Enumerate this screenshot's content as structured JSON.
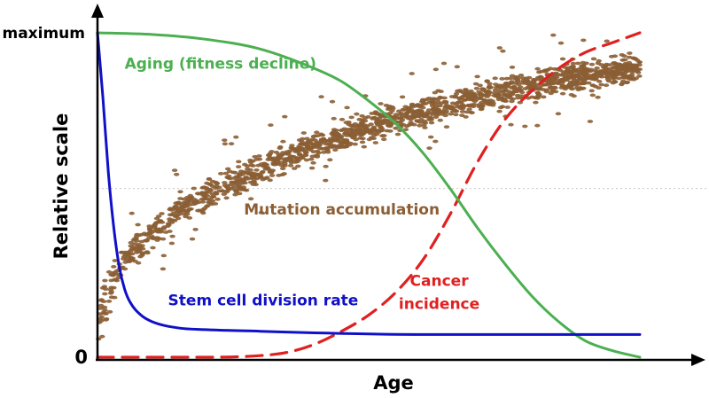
{
  "chart_data": {
    "type": "line",
    "title": "",
    "xlabel": "Age",
    "ylabel": "Relative scale",
    "xlim": [
      0,
      100
    ],
    "ylim": [
      0,
      100
    ],
    "y_ticks": [
      {
        "value": 100,
        "label": "maximum"
      },
      {
        "value": 0,
        "label": "0"
      }
    ],
    "reference_line": {
      "y": 52,
      "style": "dotted",
      "color": "#cccccc"
    },
    "legend": "none",
    "series": [
      {
        "name": "Aging (fitness decline)",
        "style": "solid",
        "color": "#4caf50",
        "label_value": {
          "x": 5,
          "y": 89
        },
        "x": [
          0,
          10,
          20,
          30,
          40,
          45,
          50,
          55,
          60,
          65,
          70,
          75,
          80,
          85,
          90,
          95,
          100
        ],
        "y": [
          100,
          99.5,
          98,
          95,
          89,
          85,
          79,
          72,
          63,
          52,
          40,
          29,
          19,
          11,
          5,
          2,
          0
        ]
      },
      {
        "name": "Stem cell division rate",
        "style": "solid",
        "color": "#1010c8",
        "label_value": {
          "x": 13,
          "y": 16
        },
        "x": [
          0,
          1,
          2,
          3,
          4,
          5,
          6,
          8,
          10,
          15,
          20,
          30,
          40,
          60,
          80,
          100
        ],
        "y": [
          100,
          80,
          57,
          40,
          28,
          21,
          17,
          13,
          11,
          9,
          8.5,
          8,
          7.5,
          7,
          7,
          7
        ]
      },
      {
        "name": "Cancer incidence",
        "style": "dashed",
        "color": "#e02020",
        "label_value": {
          "x": 63,
          "y": 22
        },
        "label_lines": [
          "Cancer",
          "incidence"
        ],
        "x": [
          0,
          20,
          30,
          35,
          40,
          45,
          50,
          55,
          60,
          65,
          70,
          75,
          80,
          85,
          90,
          95,
          100
        ],
        "y": [
          0,
          0,
          0.5,
          1.5,
          4,
          8,
          13,
          20,
          30,
          44,
          60,
          73,
          82,
          89,
          94,
          97,
          100
        ]
      }
    ],
    "scatter": {
      "name": "Mutation accumulation",
      "color": "#8b5e34",
      "label_value": {
        "x": 27,
        "y": 44
      },
      "trend": {
        "x": [
          0,
          2,
          5,
          10,
          15,
          20,
          30,
          40,
          50,
          60,
          70,
          80,
          90,
          100
        ],
        "y": [
          10,
          20,
          30,
          38,
          45,
          50,
          58,
          65,
          71,
          76,
          80,
          84,
          87,
          89
        ]
      }
    }
  }
}
